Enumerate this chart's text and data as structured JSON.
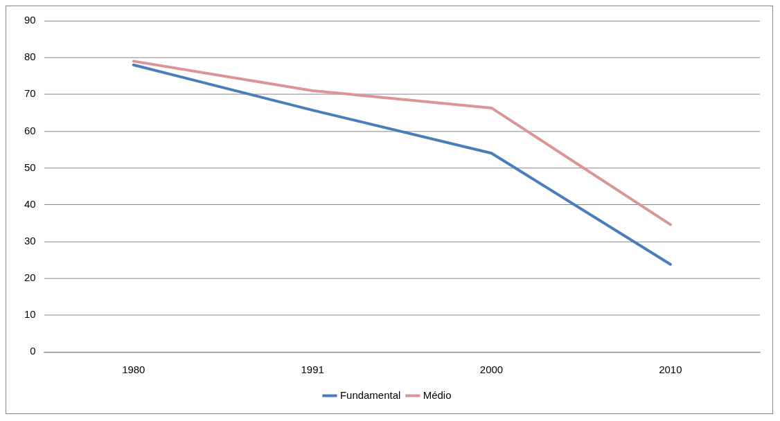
{
  "chart_data": {
    "type": "line",
    "categories": [
      "1980",
      "1991",
      "2000",
      "2010"
    ],
    "series": [
      {
        "name": "Fundamental",
        "color": "#4a7ebb",
        "values": [
          78,
          65.7,
          54,
          23.8
        ]
      },
      {
        "name": "Médio",
        "color": "#da9694",
        "values": [
          79,
          71,
          66.3,
          34.6
        ]
      }
    ],
    "ylim": [
      0,
      90
    ],
    "yticks": [
      0,
      10,
      20,
      30,
      40,
      50,
      60,
      70,
      80,
      90
    ],
    "grid": "y",
    "legend": "bottom",
    "marker": "none",
    "line_style": "solid"
  }
}
